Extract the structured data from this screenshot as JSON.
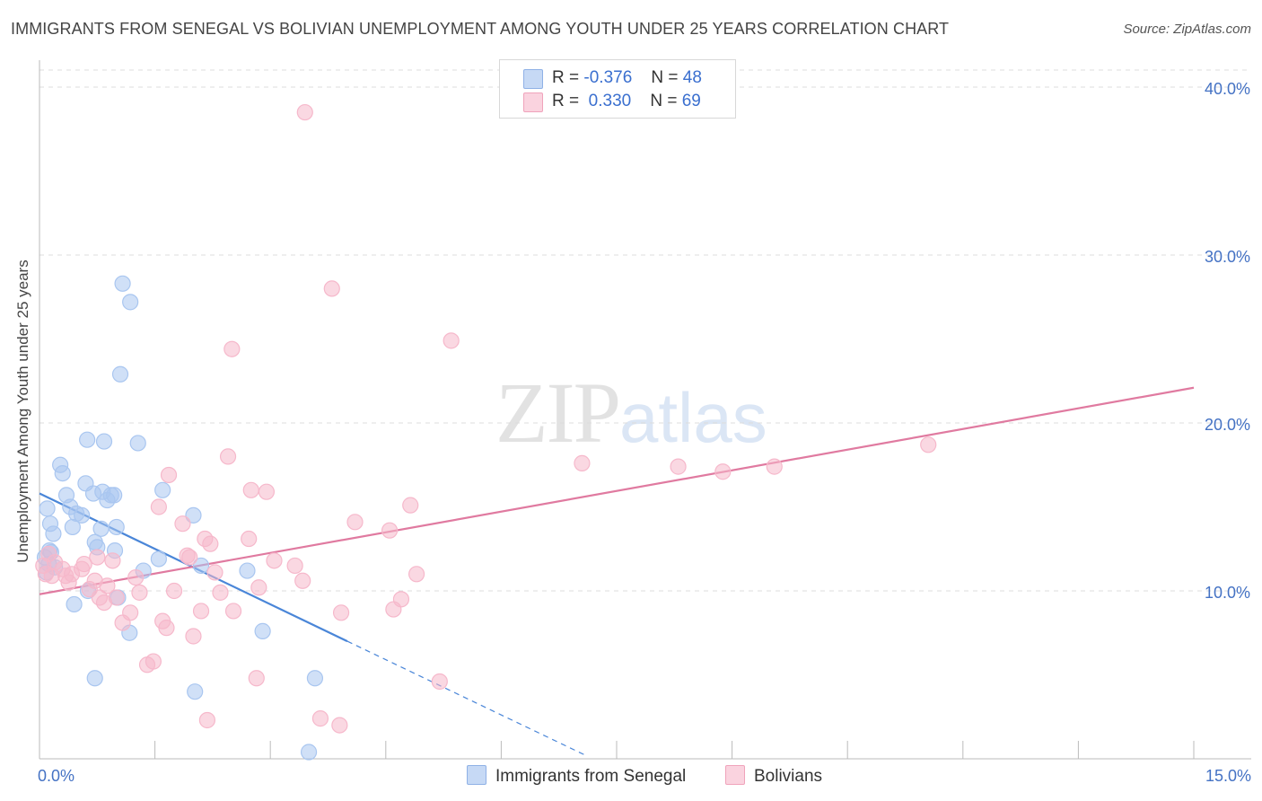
{
  "title": "IMMIGRANTS FROM SENEGAL VS BOLIVIAN UNEMPLOYMENT AMONG YOUTH UNDER 25 YEARS CORRELATION CHART",
  "source": "Source: ZipAtlas.com",
  "watermark": {
    "zip": "ZIP",
    "atlas": "atlas"
  },
  "legend_top": [
    {
      "r_label": "R =",
      "r_value": "-0.376",
      "n_label": "N =",
      "n_value": "48",
      "color": "#a9c6f0"
    },
    {
      "r_label": "R =",
      "r_value": "0.330",
      "n_label": "N =",
      "n_value": "69",
      "color": "#f6b8cb"
    }
  ],
  "legend_bottom": [
    "Immigrants from Senegal",
    "Bolivians"
  ],
  "chart_data": {
    "type": "scatter",
    "title": "IMMIGRANTS FROM SENEGAL VS BOLIVIAN UNEMPLOYMENT AMONG YOUTH UNDER 25 YEARS CORRELATION CHART",
    "xlabel": "",
    "ylabel": "Unemployment Among Youth under 25 years",
    "xlim": [
      0,
      15
    ],
    "ylim": [
      0,
      40
    ],
    "x_tick_labels": [
      "0.0%",
      "15.0%"
    ],
    "y_tick_labels": [
      "10.0%",
      "20.0%",
      "30.0%",
      "40.0%"
    ],
    "y_ticks": [
      10,
      20,
      30,
      40
    ],
    "grid": true,
    "series": [
      {
        "name": "Immigrants from Senegal",
        "color": "#4a86d8",
        "fill": "#a9c6f0",
        "r": -0.376,
        "n": 48,
        "trend": {
          "x0": 0.0,
          "y0": 15.8,
          "x1": 4.0,
          "y1": 7.0,
          "dash_to_x": 7.1,
          "dash_to_y": 0.2
        },
        "points": [
          [
            0.07,
            12.0
          ],
          [
            0.09,
            11.1
          ],
          [
            0.12,
            11.6
          ],
          [
            0.13,
            12.4
          ],
          [
            0.15,
            12.3
          ],
          [
            0.1,
            14.9
          ],
          [
            0.14,
            14.0
          ],
          [
            0.18,
            13.4
          ],
          [
            0.2,
            11.4
          ],
          [
            0.27,
            17.5
          ],
          [
            0.3,
            17.0
          ],
          [
            0.35,
            15.7
          ],
          [
            0.4,
            15.0
          ],
          [
            0.43,
            13.8
          ],
          [
            0.48,
            14.6
          ],
          [
            0.55,
            14.5
          ],
          [
            0.6,
            16.4
          ],
          [
            0.62,
            19.0
          ],
          [
            0.7,
            15.8
          ],
          [
            0.72,
            12.9
          ],
          [
            0.75,
            12.6
          ],
          [
            0.8,
            13.7
          ],
          [
            0.82,
            15.9
          ],
          [
            0.84,
            18.9
          ],
          [
            0.88,
            15.4
          ],
          [
            0.93,
            15.7
          ],
          [
            0.97,
            15.7
          ],
          [
            0.98,
            12.4
          ],
          [
            1.0,
            13.8
          ],
          [
            1.08,
            28.3
          ],
          [
            1.18,
            27.2
          ],
          [
            1.05,
            22.9
          ],
          [
            1.28,
            18.8
          ],
          [
            1.6,
            16.0
          ],
          [
            1.55,
            11.9
          ],
          [
            2.0,
            14.5
          ],
          [
            1.35,
            11.2
          ],
          [
            0.45,
            9.2
          ],
          [
            0.63,
            10.0
          ],
          [
            1.02,
            9.6
          ],
          [
            1.17,
            7.5
          ],
          [
            0.72,
            4.8
          ],
          [
            2.02,
            4.0
          ],
          [
            2.7,
            11.2
          ],
          [
            2.9,
            7.6
          ],
          [
            3.58,
            4.8
          ],
          [
            3.5,
            0.4
          ],
          [
            2.1,
            11.5
          ]
        ]
      },
      {
        "name": "Bolivians",
        "color": "#e07aa0",
        "fill": "#f6b8cb",
        "r": 0.33,
        "n": 69,
        "trend": {
          "x0": 0.0,
          "y0": 9.8,
          "x1": 15.0,
          "y1": 22.1
        },
        "points": [
          [
            0.05,
            11.5
          ],
          [
            0.08,
            11.0
          ],
          [
            0.12,
            12.2
          ],
          [
            0.16,
            10.9
          ],
          [
            0.2,
            11.7
          ],
          [
            0.3,
            11.3
          ],
          [
            0.34,
            10.9
          ],
          [
            0.38,
            10.5
          ],
          [
            0.42,
            11.0
          ],
          [
            0.55,
            11.3
          ],
          [
            0.58,
            11.6
          ],
          [
            0.65,
            10.1
          ],
          [
            0.72,
            10.6
          ],
          [
            0.78,
            9.6
          ],
          [
            0.84,
            9.3
          ],
          [
            0.88,
            10.3
          ],
          [
            0.95,
            11.8
          ],
          [
            1.0,
            9.6
          ],
          [
            1.08,
            8.1
          ],
          [
            1.18,
            8.7
          ],
          [
            1.25,
            10.8
          ],
          [
            1.3,
            9.9
          ],
          [
            1.4,
            5.6
          ],
          [
            1.48,
            5.8
          ],
          [
            1.55,
            15.0
          ],
          [
            1.6,
            8.2
          ],
          [
            1.65,
            7.8
          ],
          [
            1.68,
            16.9
          ],
          [
            1.75,
            10.0
          ],
          [
            1.86,
            14.0
          ],
          [
            1.92,
            12.1
          ],
          [
            1.95,
            12.0
          ],
          [
            2.0,
            7.3
          ],
          [
            2.1,
            8.8
          ],
          [
            2.15,
            13.1
          ],
          [
            2.22,
            12.8
          ],
          [
            2.28,
            11.1
          ],
          [
            2.35,
            9.9
          ],
          [
            2.5,
            24.4
          ],
          [
            2.45,
            18.0
          ],
          [
            2.52,
            8.8
          ],
          [
            2.72,
            13.1
          ],
          [
            2.75,
            16.0
          ],
          [
            2.82,
            4.8
          ],
          [
            2.85,
            10.2
          ],
          [
            2.95,
            15.9
          ],
          [
            3.05,
            11.8
          ],
          [
            3.32,
            11.5
          ],
          [
            3.42,
            10.6
          ],
          [
            3.45,
            38.5
          ],
          [
            3.65,
            2.4
          ],
          [
            3.8,
            28.0
          ],
          [
            3.92,
            8.7
          ],
          [
            3.9,
            2.0
          ],
          [
            4.1,
            14.1
          ],
          [
            4.55,
            13.6
          ],
          [
            4.6,
            8.9
          ],
          [
            4.7,
            9.5
          ],
          [
            4.82,
            15.1
          ],
          [
            4.9,
            11.0
          ],
          [
            5.35,
            24.9
          ],
          [
            5.2,
            4.6
          ],
          [
            7.05,
            17.6
          ],
          [
            8.3,
            17.4
          ],
          [
            8.88,
            17.1
          ],
          [
            9.55,
            17.4
          ],
          [
            11.55,
            18.7
          ],
          [
            2.18,
            2.3
          ],
          [
            0.75,
            12.0
          ]
        ]
      }
    ]
  }
}
